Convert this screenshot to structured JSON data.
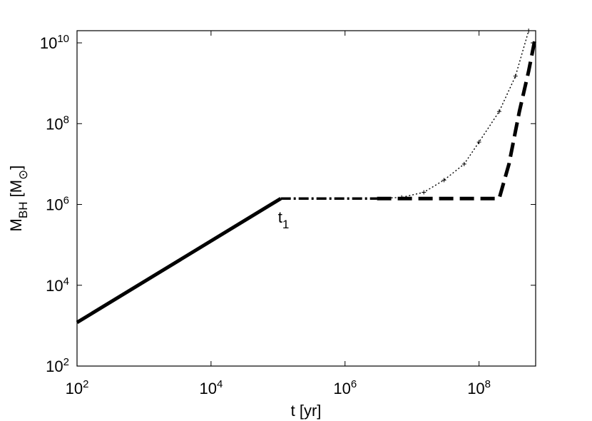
{
  "chart_data": {
    "type": "line",
    "title": "",
    "xlabel": "t [yr]",
    "ylabel": {
      "main": "M",
      "sub": "BH",
      "unit_open": " [M",
      "unit_sub": "⊙",
      "unit_close": "]"
    },
    "xscale": "log",
    "yscale": "log",
    "xlim": [
      100,
      700000000
    ],
    "ylim": [
      100,
      20000000000
    ],
    "grid": false,
    "x_ticks": [
      {
        "value": 100,
        "base": "10",
        "exp": "2"
      },
      {
        "value": 10000,
        "base": "10",
        "exp": "4"
      },
      {
        "value": 1000000,
        "base": "10",
        "exp": "6"
      },
      {
        "value": 100000000,
        "base": "10",
        "exp": "8"
      }
    ],
    "y_ticks": [
      {
        "value": 100,
        "base": "10",
        "exp": "2"
      },
      {
        "value": 10000,
        "base": "10",
        "exp": "4"
      },
      {
        "value": 1000000,
        "base": "10",
        "exp": "6"
      },
      {
        "value": 100000000,
        "base": "10",
        "exp": "8"
      },
      {
        "value": 10000000000,
        "base": "10",
        "exp": "10"
      }
    ],
    "series": [
      {
        "style": "solid",
        "points": [
          [
            100,
            1200
          ],
          [
            110000,
            1400000
          ]
        ]
      },
      {
        "style": "dashdot",
        "points": [
          [
            110000,
            1400000
          ],
          [
            3000000,
            1400000
          ]
        ]
      },
      {
        "style": "dotted-markers",
        "points": [
          [
            3000000,
            1400000
          ],
          [
            7000000,
            1500000
          ],
          [
            15000000,
            2000000
          ],
          [
            30000000,
            4000000
          ],
          [
            60000000,
            10000000
          ],
          [
            100000000,
            35000000
          ],
          [
            200000000,
            200000000
          ],
          [
            350000000,
            1500000000
          ],
          [
            550000000,
            20000000000
          ]
        ]
      },
      {
        "style": "dashed",
        "points": [
          [
            3000000,
            1400000
          ],
          [
            200000000,
            1400000
          ],
          [
            280000000,
            10000000
          ],
          [
            400000000,
            200000000
          ],
          [
            550000000,
            2000000000
          ],
          [
            700000000,
            15000000000
          ]
        ]
      }
    ],
    "annotations": [
      {
        "text": "t",
        "sub": "1",
        "x": 110000,
        "y": 1400000
      }
    ]
  }
}
